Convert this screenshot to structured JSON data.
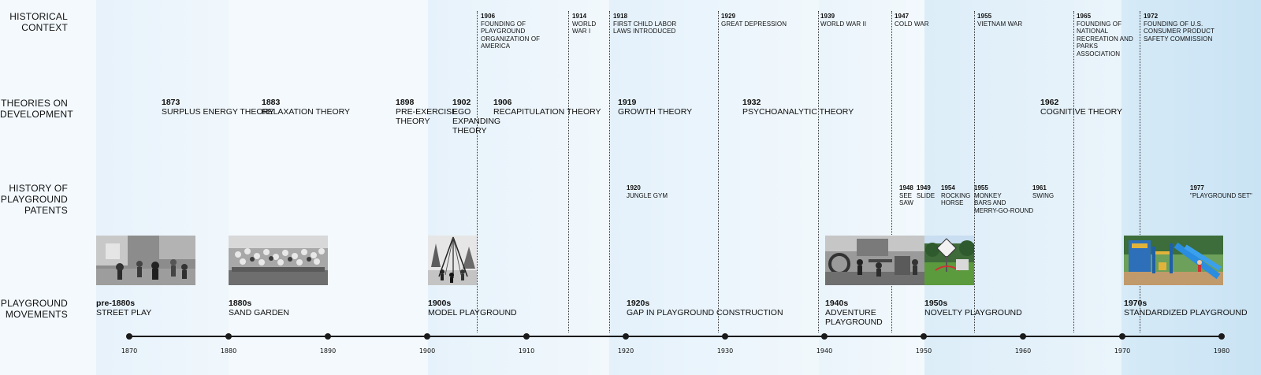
{
  "row_labels": {
    "historical_context": "HISTORICAL\nCONTEXT",
    "theories": "THEORIES ON\nDEVELOPMENT",
    "patents": "HISTORY OF\nPLAYGROUND\nPATENTS",
    "movements": "PLAYGROUND\nMOVEMENTS"
  },
  "historical_context": [
    {
      "year": "1906",
      "text": "FOUNDING OF\nPLAYGROUND\nORGANIZATION OF\nAMERICA"
    },
    {
      "year": "1914",
      "text": "WORLD\nWAR I"
    },
    {
      "year": "1918",
      "text": "FIRST CHILD LABOR\nLAWS INTRODUCED"
    },
    {
      "year": "1929",
      "text": "GREAT DEPRESSION"
    },
    {
      "year": "1939",
      "text": "WORLD WAR II"
    },
    {
      "year": "1947",
      "text": "COLD WAR"
    },
    {
      "year": "1955",
      "text": "VIETNAM WAR"
    },
    {
      "year": "1965",
      "text": "FOUNDING OF\nNATIONAL\nRECREATION AND\nPARKS\nASSOCIATION"
    },
    {
      "year": "1972",
      "text": "FOUNDING OF U.S.\nCONSUMER PRODUCT\nSAFETY COMMISSION"
    }
  ],
  "theories": [
    {
      "year": "1873",
      "text": "SURPLUS ENERGY THEORY"
    },
    {
      "year": "1883",
      "text": "RELAXATION THEORY"
    },
    {
      "year": "1898",
      "text": "PRE-EXERCISE\nTHEORY"
    },
    {
      "year": "1902",
      "text": "EGO\nEXPANDING\nTHEORY"
    },
    {
      "year": "1906",
      "text": "RECAPITULATION THEORY"
    },
    {
      "year": "1919",
      "text": "GROWTH THEORY"
    },
    {
      "year": "1932",
      "text": "PSYCHOANALYTIC THEORY"
    },
    {
      "year": "1962",
      "text": "COGNITIVE THEORY"
    }
  ],
  "patents": [
    {
      "year": "1920",
      "text": "JUNGLE GYM"
    },
    {
      "year": "1948",
      "text": "SEE\nSAW"
    },
    {
      "year": "1949",
      "text": "SLIDE"
    },
    {
      "year": "1954",
      "text": "ROCKING\nHORSE"
    },
    {
      "year": "1955",
      "text": "MONKEY\nBARS AND\nMERRY-GO-ROUND"
    },
    {
      "year": "1961",
      "text": "SWING"
    },
    {
      "year": "1977",
      "text": "\"PLAYGROUND SET\""
    }
  ],
  "movements": [
    {
      "year": "pre-1880s",
      "text": "STREET PLAY"
    },
    {
      "year": "1880s",
      "text": "SAND GARDEN"
    },
    {
      "year": "1900s",
      "text": "MODEL PLAYGROUND"
    },
    {
      "year": "1920s",
      "text": "GAP IN PLAYGROUND CONSTRUCTION"
    },
    {
      "year": "1940s",
      "text": "ADVENTURE\nPLAYGROUND"
    },
    {
      "year": "1950s",
      "text": "NOVELTY PLAYGROUND"
    },
    {
      "year": "1970s",
      "text": "STANDARDIZED PLAYGROUND"
    }
  ],
  "axis_ticks": [
    "1870",
    "1880",
    "1890",
    "1900",
    "1910",
    "1920",
    "1930",
    "1940",
    "1950",
    "1960",
    "1970",
    "1980"
  ],
  "photos": [
    {
      "name": "street-play-photo",
      "tone": "bw"
    },
    {
      "name": "sand-garden-photo",
      "tone": "bw"
    },
    {
      "name": "model-playground-photo",
      "tone": "bw"
    },
    {
      "name": "adventure-playground-photo",
      "tone": "bw"
    },
    {
      "name": "novelty-playground-photo",
      "tone": "color"
    },
    {
      "name": "standardized-playground-photo",
      "tone": "color"
    }
  ],
  "colors": {
    "background": "#f3f9fd",
    "band_light": "#e9f4fb",
    "band_mid": "#dcedf8",
    "band_dark": "#cfe6f5",
    "axis": "#1a1a1a"
  }
}
